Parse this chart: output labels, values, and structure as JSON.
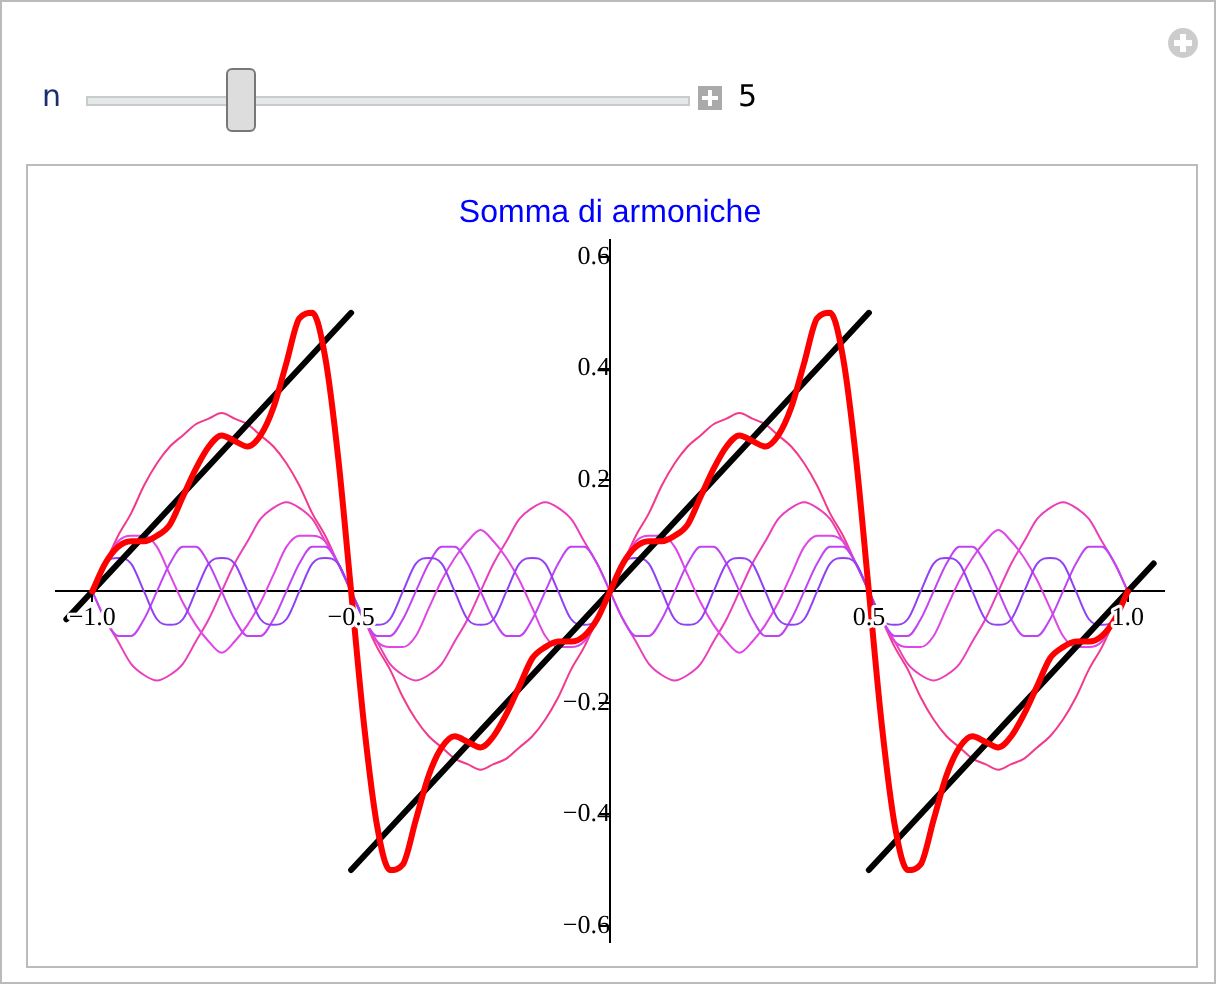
{
  "chart_data": {
    "type": "line",
    "title": "Somma di armoniche",
    "annotations": [
      "n",
      "5"
    ],
    "x": [
      -1,
      -0.975,
      -0.95,
      -0.925,
      -0.9,
      -0.875,
      -0.85,
      -0.825,
      -0.8,
      -0.775,
      -0.75,
      -0.725,
      -0.7,
      -0.675,
      -0.65,
      -0.625,
      -0.6,
      -0.575,
      -0.55,
      -0.525,
      -0.5,
      -0.475,
      -0.45,
      -0.425,
      -0.4,
      -0.375,
      -0.35,
      -0.325,
      -0.3,
      -0.275,
      -0.25,
      -0.225,
      -0.2,
      -0.175,
      -0.15,
      -0.125,
      -0.1,
      -0.075,
      -0.05,
      -0.025,
      0,
      0.025,
      0.05,
      0.075,
      0.1,
      0.125,
      0.15,
      0.175,
      0.2,
      0.225,
      0.25,
      0.275,
      0.3,
      0.325,
      0.35,
      0.375,
      0.4,
      0.425,
      0.45,
      0.475,
      0.5,
      0.525,
      0.55,
      0.575,
      0.6,
      0.625,
      0.65,
      0.675,
      0.7,
      0.725,
      0.75,
      0.775,
      0.8,
      0.825,
      0.85,
      0.875,
      0.9,
      0.925,
      0.95,
      0.975,
      1
    ],
    "series": [
      {
        "color": "#f2398a",
        "values": [
          0,
          0.05,
          0.1,
          0.14,
          0.19,
          0.23,
          0.26,
          0.28,
          0.3,
          0.31,
          0.32,
          0.31,
          0.3,
          0.28,
          0.26,
          0.23,
          0.19,
          0.14,
          0.1,
          0.05,
          0,
          -0.05,
          -0.1,
          -0.14,
          -0.19,
          -0.23,
          -0.26,
          -0.28,
          -0.3,
          -0.31,
          -0.32,
          -0.31,
          -0.3,
          -0.28,
          -0.26,
          -0.23,
          -0.19,
          -0.14,
          -0.1,
          -0.05,
          0,
          0.05,
          0.1,
          0.14,
          0.19,
          0.23,
          0.26,
          0.28,
          0.3,
          0.31,
          0.32,
          0.31,
          0.3,
          0.28,
          0.26,
          0.23,
          0.19,
          0.14,
          0.1,
          0.05,
          0,
          -0.05,
          -0.1,
          -0.14,
          -0.19,
          -0.23,
          -0.26,
          -0.28,
          -0.3,
          -0.31,
          -0.32,
          -0.31,
          -0.3,
          -0.28,
          -0.26,
          -0.23,
          -0.19,
          -0.14,
          -0.1,
          -0.05,
          0
        ]
      },
      {
        "color": "#ea3fb8",
        "values": [
          0,
          -0.05,
          -0.09,
          -0.13,
          -0.15,
          -0.16,
          -0.15,
          -0.13,
          -0.09,
          -0.05,
          0,
          0.05,
          0.09,
          0.13,
          0.15,
          0.16,
          0.15,
          0.13,
          0.09,
          0.05,
          0,
          -0.05,
          -0.09,
          -0.13,
          -0.15,
          -0.16,
          -0.15,
          -0.13,
          -0.09,
          -0.05,
          0,
          0.05,
          0.09,
          0.13,
          0.15,
          0.16,
          0.15,
          0.13,
          0.09,
          0.05,
          0,
          -0.05,
          -0.09,
          -0.13,
          -0.15,
          -0.16,
          -0.15,
          -0.13,
          -0.09,
          -0.05,
          0,
          0.05,
          0.09,
          0.13,
          0.15,
          0.16,
          0.15,
          0.13,
          0.09,
          0.05,
          0,
          -0.05,
          -0.09,
          -0.13,
          -0.15,
          -0.16,
          -0.15,
          -0.13,
          -0.09,
          -0.05,
          0,
          0.05,
          0.09,
          0.13,
          0.15,
          0.16,
          0.15,
          0.13,
          0.09,
          0.05,
          0
        ]
      },
      {
        "color": "#e045e6",
        "values": [
          0,
          0.05,
          0.09,
          0.1,
          0.1,
          0.08,
          0.03,
          -0.02,
          -0.06,
          -0.09,
          -0.11,
          -0.09,
          -0.06,
          -0.02,
          0.03,
          0.08,
          0.1,
          0.1,
          0.09,
          0.05,
          0,
          -0.05,
          -0.09,
          -0.1,
          -0.1,
          -0.08,
          -0.03,
          0.02,
          0.06,
          0.09,
          0.11,
          0.09,
          0.06,
          0.02,
          -0.03,
          -0.08,
          -0.1,
          -0.1,
          -0.09,
          -0.05,
          0,
          0.05,
          0.09,
          0.1,
          0.1,
          0.08,
          0.03,
          -0.02,
          -0.06,
          -0.09,
          -0.11,
          -0.09,
          -0.06,
          -0.02,
          0.03,
          0.08,
          0.1,
          0.1,
          0.09,
          0.05,
          0,
          -0.05,
          -0.09,
          -0.1,
          -0.1,
          -0.08,
          -0.03,
          0.02,
          0.06,
          0.09,
          0.11,
          0.09,
          0.06,
          0.02,
          -0.03,
          -0.08,
          -0.1,
          -0.1,
          -0.09,
          -0.05,
          0
        ]
      },
      {
        "color": "#c044f2",
        "values": [
          0,
          -0.05,
          -0.08,
          -0.08,
          -0.05,
          0,
          0.05,
          0.08,
          0.08,
          0.05,
          0,
          -0.05,
          -0.08,
          -0.08,
          -0.05,
          0,
          0.05,
          0.08,
          0.08,
          0.05,
          0,
          -0.05,
          -0.08,
          -0.08,
          -0.05,
          0,
          0.05,
          0.08,
          0.08,
          0.05,
          0,
          -0.05,
          -0.08,
          -0.08,
          -0.05,
          0,
          0.05,
          0.08,
          0.08,
          0.05,
          0,
          -0.05,
          -0.08,
          -0.08,
          -0.05,
          0,
          0.05,
          0.08,
          0.08,
          0.05,
          0,
          -0.05,
          -0.08,
          -0.08,
          -0.05,
          0,
          0.05,
          0.08,
          0.08,
          0.05,
          0,
          -0.05,
          -0.08,
          -0.08,
          -0.05,
          0,
          0.05,
          0.08,
          0.08,
          0.05,
          0,
          -0.05,
          -0.08,
          -0.08,
          -0.05,
          0,
          0.05,
          0.08,
          0.08,
          0.05,
          0
        ]
      },
      {
        "color": "#9040f5",
        "values": [
          0,
          0.05,
          0.06,
          0.05,
          0,
          -0.05,
          -0.06,
          -0.05,
          0,
          0.05,
          0.06,
          0.05,
          0,
          -0.05,
          -0.06,
          -0.05,
          0,
          0.05,
          0.06,
          0.05,
          0,
          -0.05,
          -0.06,
          -0.05,
          0,
          0.05,
          0.06,
          0.05,
          0,
          -0.05,
          -0.06,
          -0.05,
          0,
          0.05,
          0.06,
          0.05,
          0,
          -0.05,
          -0.06,
          -0.05,
          0,
          0.05,
          0.06,
          0.05,
          0,
          -0.05,
          -0.06,
          -0.05,
          0,
          0.05,
          0.06,
          0.05,
          0,
          -0.05,
          -0.06,
          -0.05,
          0,
          0.05,
          0.06,
          0.05,
          0,
          -0.05,
          -0.06,
          -0.05,
          0,
          0.05,
          0.06,
          0.05,
          0,
          -0.05,
          -0.06,
          -0.05,
          0,
          0.05,
          0.06,
          0.05,
          0,
          -0.05,
          -0.06,
          -0.05,
          0
        ]
      },
      {
        "color": "#000000",
        "x": [
          -1.05,
          -0.5
        ],
        "values": [
          -0.05,
          0.5
        ]
      },
      {
        "color": "#000000",
        "x": [
          -0.5,
          0.5
        ],
        "values": [
          -0.5,
          0.5
        ]
      },
      {
        "color": "#000000",
        "x": [
          0.5,
          1.05
        ],
        "values": [
          -0.5,
          0.05
        ]
      },
      {
        "color": "#ff0000",
        "values": [
          0,
          0.05,
          0.08,
          0.09,
          0.09,
          0.1,
          0.12,
          0.17,
          0.22,
          0.26,
          0.28,
          0.27,
          0.26,
          0.28,
          0.33,
          0.41,
          0.49,
          0.5,
          0.42,
          0.24,
          0,
          -0.24,
          -0.42,
          -0.5,
          -0.49,
          -0.41,
          -0.33,
          -0.28,
          -0.26,
          -0.27,
          -0.28,
          -0.26,
          -0.22,
          -0.17,
          -0.12,
          -0.1,
          -0.09,
          -0.09,
          -0.08,
          -0.05,
          0,
          0.05,
          0.08,
          0.09,
          0.09,
          0.1,
          0.12,
          0.17,
          0.22,
          0.26,
          0.28,
          0.27,
          0.26,
          0.28,
          0.33,
          0.41,
          0.49,
          0.5,
          0.42,
          0.24,
          0,
          -0.24,
          -0.42,
          -0.5,
          -0.49,
          -0.41,
          -0.33,
          -0.28,
          -0.26,
          -0.27,
          -0.28,
          -0.26,
          -0.22,
          -0.17,
          -0.12,
          -0.1,
          -0.09,
          -0.09,
          -0.08,
          -0.05,
          0
        ]
      }
    ],
    "xlim": [
      -1.07,
      1.07
    ],
    "xticks": [
      {
        "value": -1,
        "label": "−1.0"
      },
      {
        "value": -0.5,
        "label": "−0.5"
      },
      {
        "value": 0.5,
        "label": "0.5"
      },
      {
        "value": 1,
        "label": "1.0"
      }
    ],
    "ylim": [
      -0.63,
      0.63
    ],
    "yticks": [
      {
        "value": -0.6,
        "label": "−0.6"
      },
      {
        "value": -0.4,
        "label": "−0.4"
      },
      {
        "value": -0.2,
        "label": "−0.2"
      },
      {
        "value": 0.2,
        "label": "0.2"
      },
      {
        "value": 0.4,
        "label": "0.4"
      },
      {
        "value": 0.6,
        "label": "0.6"
      }
    ],
    "marker": "none",
    "line_style": "solid"
  }
}
